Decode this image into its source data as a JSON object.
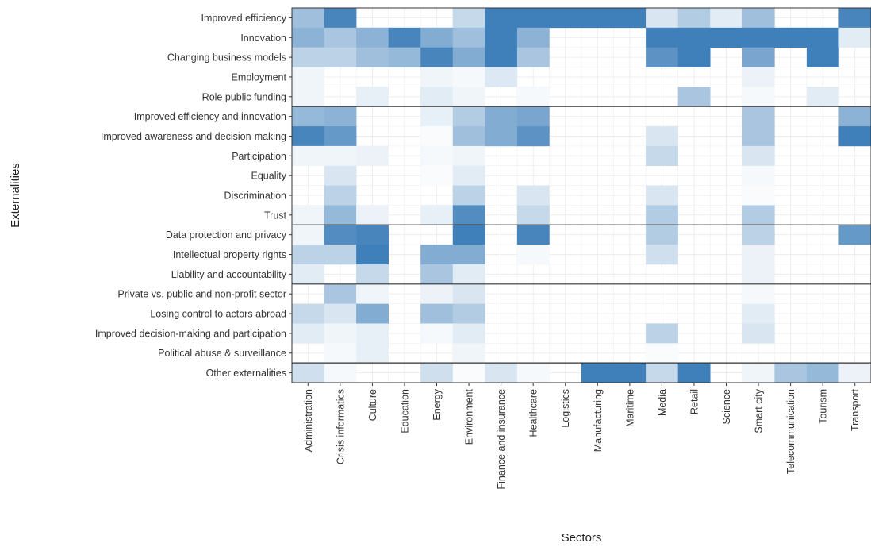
{
  "chart_data": {
    "type": "heatmap",
    "xlabel": "Sectors",
    "ylabel": "Externalities",
    "x_categories": [
      "Administration",
      "Crisis informatics",
      "Culture",
      "Education",
      "Energy",
      "Environment",
      "Finance and insurance",
      "Healthcare",
      "Logistics",
      "Manufacturing",
      "Maritime",
      "Media",
      "Retail",
      "Science",
      "Smart city",
      "Telecommunication",
      "Tourism",
      "Transport"
    ],
    "y_categories": [
      "Improved efficiency",
      "Innovation",
      "Changing business models",
      "Employment",
      "Role public funding",
      "Improved efficiency and innovation",
      "Improved awareness and decision-making",
      "Participation",
      "Equality",
      "Discrimination",
      "Trust",
      "Data protection and privacy",
      "Intellectual property rights",
      "Liability and accountability",
      "Private vs. public and non-profit sector",
      "Losing control to actors abroad",
      "Improved decision-making and participation",
      "Political abuse & surveillance",
      "Other externalities"
    ],
    "group_separators_after_row": [
      4,
      10,
      13,
      17
    ],
    "color_scale": {
      "low": "#ffffff",
      "high": "#3f7fba",
      "min": 0,
      "max": 1
    },
    "grid": true,
    "values": [
      [
        0.5,
        0.95,
        0,
        0,
        0,
        0.3,
        1.0,
        1.0,
        1.0,
        1.0,
        1.0,
        0.2,
        0.4,
        0.15,
        0.5,
        0,
        0,
        0.95
      ],
      [
        0.6,
        0.45,
        0.6,
        0.95,
        0.65,
        0.5,
        1.0,
        0.6,
        0,
        0,
        0,
        1.0,
        1.0,
        1.0,
        1.0,
        1.0,
        1.0,
        0.15
      ],
      [
        0.35,
        0.35,
        0.5,
        0.55,
        0.95,
        0.65,
        1.0,
        0.45,
        0,
        0,
        0,
        0.85,
        1.0,
        0,
        0.7,
        0,
        1.0,
        0
      ],
      [
        0.08,
        0,
        0,
        0,
        0.08,
        0.05,
        0.18,
        0,
        0,
        0,
        0,
        0,
        0,
        0,
        0.1,
        0,
        0,
        0
      ],
      [
        0.08,
        0,
        0.12,
        0,
        0.15,
        0.08,
        0,
        0.05,
        0,
        0,
        0,
        0,
        0.45,
        0,
        0.05,
        0,
        0.15,
        0
      ],
      [
        0.55,
        0.6,
        0,
        0,
        0.12,
        0.4,
        0.65,
        0.7,
        0,
        0,
        0,
        0,
        0,
        0,
        0.45,
        0,
        0,
        0.6
      ],
      [
        0.95,
        0.8,
        0,
        0,
        0.03,
        0.5,
        0.65,
        0.85,
        0,
        0,
        0,
        0.2,
        0,
        0,
        0.45,
        0,
        0,
        1.0
      ],
      [
        0.08,
        0.08,
        0.1,
        0,
        0.05,
        0.08,
        0,
        0,
        0,
        0,
        0,
        0.3,
        0,
        0,
        0.2,
        0,
        0,
        0
      ],
      [
        0,
        0.2,
        0,
        0,
        0.03,
        0.15,
        0,
        0,
        0,
        0,
        0,
        0,
        0,
        0,
        0.05,
        0,
        0,
        0
      ],
      [
        0,
        0.35,
        0,
        0,
        0,
        0.35,
        0,
        0.2,
        0,
        0,
        0,
        0.2,
        0,
        0,
        0.03,
        0,
        0,
        0
      ],
      [
        0.08,
        0.55,
        0.1,
        0,
        0.12,
        0.9,
        0,
        0.3,
        0,
        0,
        0,
        0.4,
        0,
        0,
        0.4,
        0,
        0,
        0
      ],
      [
        0.08,
        0.9,
        0.95,
        0,
        0,
        1.0,
        0,
        0.95,
        0,
        0,
        0,
        0.4,
        0,
        0,
        0.35,
        0,
        0,
        0.8
      ],
      [
        0.35,
        0.35,
        1.0,
        0,
        0.65,
        0.65,
        0,
        0.05,
        0,
        0,
        0,
        0.25,
        0,
        0,
        0.1,
        0,
        0,
        0
      ],
      [
        0.15,
        0,
        0.3,
        0,
        0.45,
        0.15,
        0,
        0,
        0,
        0,
        0,
        0,
        0,
        0,
        0.1,
        0,
        0,
        0
      ],
      [
        0,
        0.45,
        0.08,
        0,
        0.1,
        0.2,
        0,
        0,
        0,
        0,
        0,
        0,
        0,
        0,
        0.05,
        0,
        0,
        0
      ],
      [
        0.3,
        0.2,
        0.65,
        0,
        0.5,
        0.4,
        0,
        0,
        0,
        0,
        0,
        0,
        0,
        0,
        0.15,
        0,
        0,
        0
      ],
      [
        0.15,
        0.08,
        0.12,
        0,
        0.05,
        0.15,
        0,
        0,
        0,
        0,
        0,
        0.35,
        0,
        0,
        0.2,
        0,
        0,
        0
      ],
      [
        0,
        0.05,
        0.12,
        0,
        0,
        0.08,
        0,
        0,
        0,
        0,
        0,
        0.03,
        0,
        0,
        0,
        0,
        0,
        0
      ],
      [
        0.25,
        0.05,
        0,
        0,
        0.25,
        0.03,
        0.2,
        0.05,
        0,
        1.0,
        1.0,
        0.3,
        1.0,
        0,
        0.08,
        0.45,
        0.55,
        0.1
      ]
    ]
  }
}
